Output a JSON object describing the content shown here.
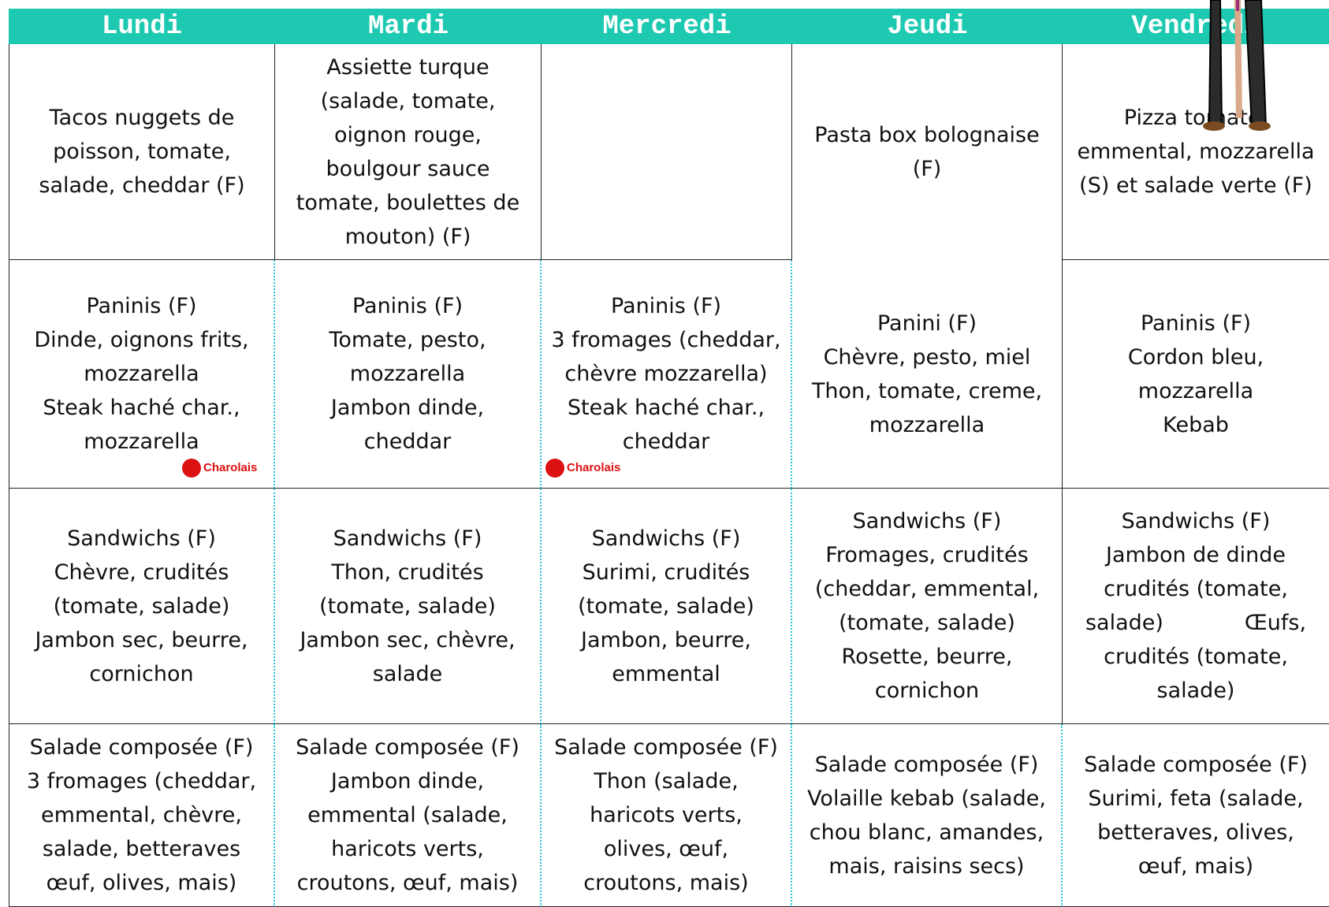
{
  "header": {
    "days": [
      "Lundi",
      "Mardi",
      "Mercredi",
      "Jeudi",
      "Vendredi"
    ]
  },
  "table": {
    "rows": [
      [
        {
          "lines": [
            "Tacos nuggets de",
            "poisson, tomate,",
            "salade, cheddar (F)"
          ]
        },
        {
          "lines": [
            "Assiette turque",
            "(salade, tomate,",
            "oignon rouge,",
            "boulgour sauce",
            "tomate, boulettes de",
            "mouton) (F)"
          ]
        },
        {
          "lines": []
        },
        {
          "lines": [
            "Pasta box bolognaise",
            "(F)"
          ]
        },
        {
          "lines": [
            "Pizza tomate,",
            "emmental, mozzarella",
            "(S) et salade verte (F)"
          ]
        }
      ],
      [
        {
          "lines": [
            "Paninis (F)",
            "Dinde, oignons frits,",
            "mozzarella",
            "Steak haché char.,",
            "mozzarella"
          ],
          "badge": "Charolais"
        },
        {
          "lines": [
            "Paninis (F)",
            "Tomate, pesto,",
            "mozzarella",
            "Jambon dinde,",
            "cheddar"
          ]
        },
        {
          "lines": [
            "Paninis (F)",
            "3 fromages (cheddar,",
            "chèvre mozzarella)",
            "Steak haché char.,",
            "cheddar"
          ],
          "badge": "Charolais"
        },
        {
          "lines": [
            "Panini (F)",
            "Chèvre, pesto, miel",
            "Thon, tomate, creme,",
            "mozzarella"
          ]
        },
        {
          "lines": [
            "Paninis (F)",
            "Cordon bleu,",
            "mozzarella",
            "Kebab"
          ]
        }
      ],
      [
        {
          "lines": [
            "Sandwichs (F)",
            "Chèvre, crudités",
            "(tomate, salade)",
            "Jambon sec, beurre,",
            "cornichon"
          ]
        },
        {
          "lines": [
            "Sandwichs (F)",
            "Thon, crudités",
            "(tomate, salade)",
            "Jambon sec, chèvre,",
            "salade"
          ]
        },
        {
          "lines": [
            "Sandwichs (F)",
            "Surimi, crudités",
            "(tomate, salade)",
            "Jambon, beurre,",
            "emmental"
          ]
        },
        {
          "lines": [
            "Sandwichs (F)",
            "Fromages, crudités",
            "(cheddar, emmental,",
            "(tomate, salade)",
            "Rosette, beurre,",
            "cornichon"
          ]
        },
        {
          "lines": [
            "Sandwichs (F)",
            "Jambon de dinde",
            "crudités (tomate,",
            "salade)            Œufs,",
            "crudités (tomate,",
            "salade)"
          ]
        }
      ],
      [
        {
          "lines": [
            "Salade composée (F)",
            "3 fromages (cheddar,",
            "emmental, chèvre,",
            "salade, betteraves",
            "œuf, olives, mais)"
          ]
        },
        {
          "lines": [
            "Salade composée (F)",
            "Jambon dinde,",
            "emmental (salade,",
            "haricots verts,",
            "croutons, œuf, mais)"
          ]
        },
        {
          "lines": [
            "Salade composée (F)",
            "Thon (salade,",
            "haricots verts,",
            "olives, œuf,",
            "croutons, mais)"
          ]
        },
        {
          "lines": [
            "Salade composée (F)",
            "Volaille kebab (salade,",
            "chou blanc, amandes,",
            "mais, raisins secs)"
          ]
        },
        {
          "lines": [
            "Salade composée (F)",
            "Surimi, feta (salade,",
            "betteraves, olives,",
            "œuf, mais)"
          ]
        }
      ]
    ]
  }
}
